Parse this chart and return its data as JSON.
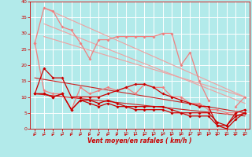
{
  "xlabel": "Vent moyen/en rafales ( km/h )",
  "bg_color": "#b2eaea",
  "grid_color": "#ffffff",
  "x": [
    0,
    1,
    2,
    3,
    4,
    5,
    6,
    7,
    8,
    9,
    10,
    11,
    12,
    13,
    14,
    15,
    16,
    17,
    18,
    19,
    20,
    21,
    22,
    23
  ],
  "ylim": [
    0,
    40
  ],
  "yticks": [
    0,
    5,
    10,
    15,
    20,
    25,
    30,
    35,
    40
  ],
  "pink_jagged": [
    27,
    38,
    37,
    32,
    31,
    27,
    22,
    28,
    28,
    29,
    29,
    29,
    29,
    29,
    30,
    30,
    20,
    24,
    15,
    9,
    null,
    null,
    7,
    10
  ],
  "pink_lower": [
    27,
    12,
    11,
    11,
    6,
    13,
    11,
    12,
    13,
    12,
    13,
    11,
    14,
    13,
    13,
    10,
    10,
    8,
    8,
    6,
    6,
    5,
    5,
    6
  ],
  "trend_pink1": [
    27,
    1,
    38,
    10
  ],
  "trend_pink2": [
    27,
    1,
    33,
    23
  ],
  "trend_pink3": [
    29,
    1,
    10,
    23
  ],
  "red_upper": [
    11,
    19,
    16,
    16,
    10,
    10,
    10,
    10,
    11,
    12,
    13,
    14,
    14,
    13,
    11,
    10,
    9,
    8,
    7,
    7,
    1,
    1,
    5,
    6
  ],
  "red_lower1": [
    11,
    11,
    10,
    11,
    6,
    9,
    9,
    8,
    9,
    8,
    7,
    7,
    7,
    7,
    7,
    6,
    5,
    5,
    5,
    5,
    2,
    1,
    4,
    5
  ],
  "red_lower2": [
    11,
    11,
    10,
    11,
    6,
    9,
    8,
    7,
    8,
    7,
    7,
    6,
    6,
    6,
    6,
    5,
    5,
    4,
    4,
    4,
    1,
    0,
    3,
    5
  ],
  "trend_red1": [
    16,
    1,
    6,
    23
  ],
  "trend_red2": [
    12,
    1,
    5,
    23
  ],
  "colors": {
    "pink": "#f08080",
    "red": "#cc0000",
    "trend_pink": "#f0a0a0",
    "trend_red": "#cc2222"
  }
}
